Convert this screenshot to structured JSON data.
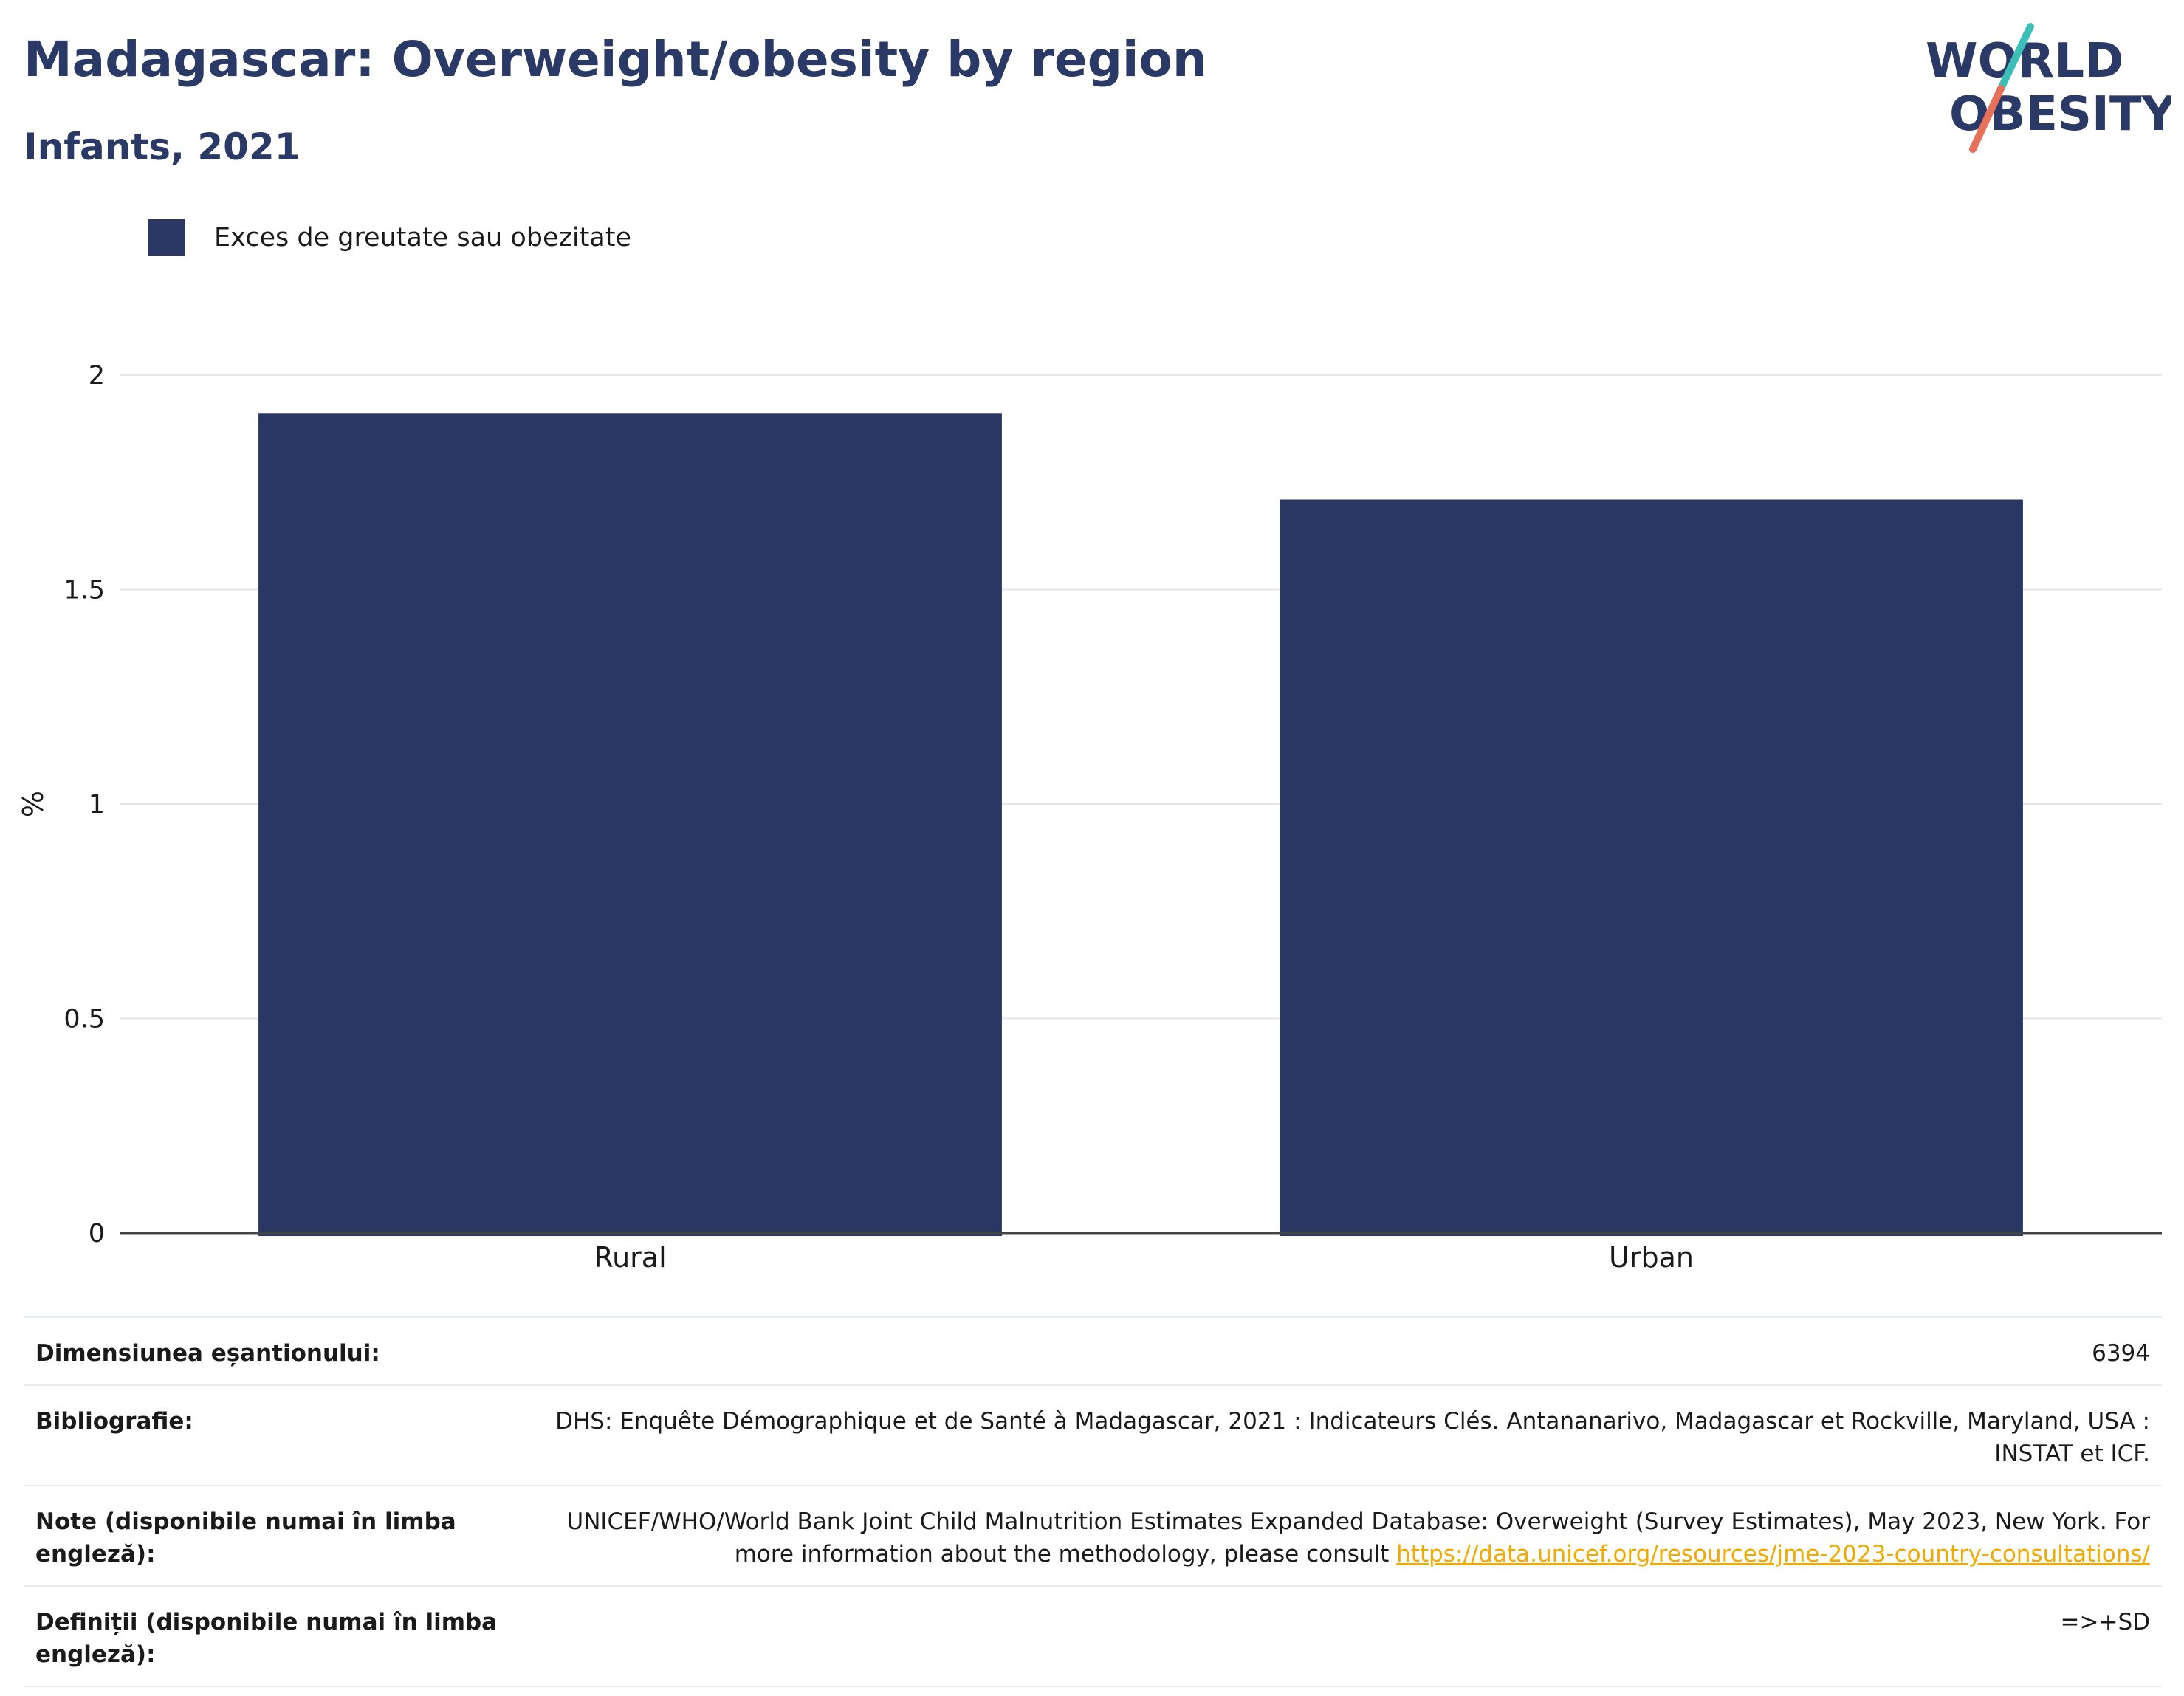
{
  "header": {
    "title": "Madagascar: Overweight/obesity by region",
    "subtitle": "Infants, 2021"
  },
  "logo": {
    "line1": "WORLD",
    "line2": "OBESITY",
    "colors": {
      "text": "#2b3966",
      "slash_top": "#3dbfb8",
      "slash_bottom": "#e8715a"
    }
  },
  "colors": {
    "bar": "#2b3763",
    "grid": "#e6e6e6",
    "axis": "#444444",
    "link": "#f2a900"
  },
  "chart_data": {
    "type": "bar",
    "categories": [
      "Rural",
      "Urban"
    ],
    "series": [
      {
        "name": "Exces de greutate sau obezitate",
        "values": [
          1.91,
          1.71
        ]
      }
    ],
    "ylabel": "%",
    "xlabel": "",
    "ylim": [
      0,
      2
    ],
    "yticks": [
      0,
      0.5,
      1,
      1.5,
      2
    ],
    "ytick_labels": [
      "0",
      "0.5",
      "1",
      "1.5",
      "2"
    ],
    "grid": true,
    "legend_position": "top-left"
  },
  "info": {
    "rows": [
      {
        "label": "Dimensiunea eșantionului:",
        "value": "6394"
      },
      {
        "label": "Bibliografie:",
        "value": "DHS: Enquête Démographique et de Santé à Madagascar, 2021 : Indicateurs Clés. Antananarivo, Madagascar et Rockville, Maryland, USA : INSTAT et ICF."
      },
      {
        "label": "Note (disponibile numai în limba engleză):",
        "value": "UNICEF/WHO/World Bank Joint Child Malnutrition Estimates Expanded Database: Overweight (Survey Estimates), May 2023, New York. For more information about the methodology, please consult ",
        "link": "https://data.unicef.org/resources/jme-2023-country-consultations/"
      },
      {
        "label": "Definiții (disponibile numai în limba engleză):",
        "value": "=>+SD"
      }
    ]
  }
}
